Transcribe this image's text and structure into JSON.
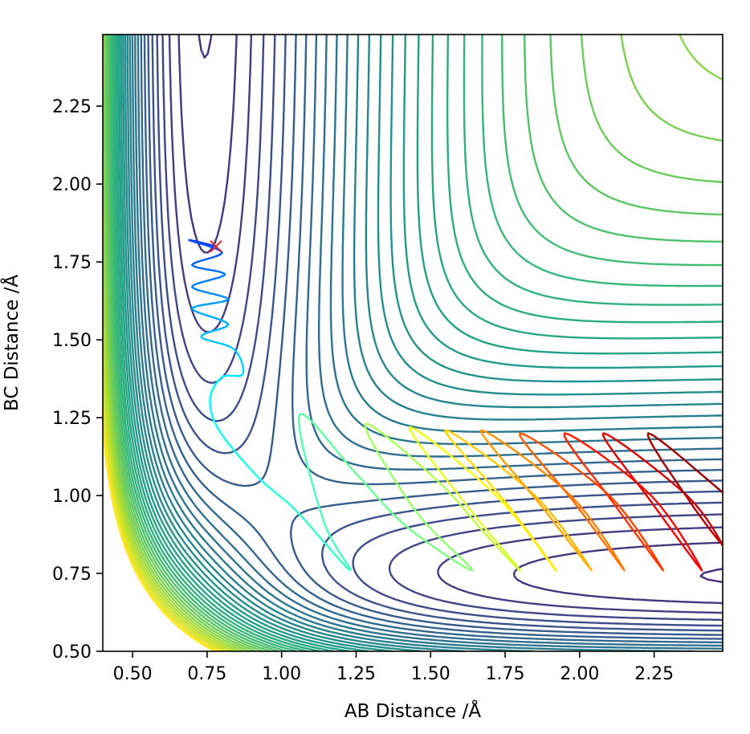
{
  "chart_data": {
    "type": "contour",
    "title": "",
    "xlabel": "AB Distance /Å",
    "ylabel": "BC Distance /Å",
    "xlim": [
      0.4,
      2.48
    ],
    "ylim": [
      0.5,
      2.48
    ],
    "xticks": [
      0.5,
      0.75,
      1.0,
      1.25,
      1.5,
      1.75,
      2.0,
      2.25
    ],
    "xtick_labels": [
      "0.50",
      "0.75",
      "1.00",
      "1.25",
      "1.50",
      "1.75",
      "2.00",
      "2.25"
    ],
    "yticks": [
      0.5,
      0.75,
      1.0,
      1.25,
      1.5,
      1.75,
      2.0,
      2.25
    ],
    "ytick_labels": [
      "0.50",
      "0.75",
      "1.00",
      "1.25",
      "1.50",
      "1.75",
      "2.00",
      "2.25"
    ],
    "grid": false,
    "legend": "none",
    "colormap": "viridis",
    "contour_levels": 40,
    "trajectory_colormap": "jet",
    "start_marker": {
      "x": 0.78,
      "y": 1.8,
      "symbol": "x",
      "color": "#e03030"
    },
    "trajectory": [
      [
        0.78,
        1.8
      ],
      [
        0.69,
        1.82
      ],
      [
        0.8,
        1.78
      ],
      [
        0.7,
        1.74
      ],
      [
        0.81,
        1.71
      ],
      [
        0.7,
        1.67
      ],
      [
        0.82,
        1.63
      ],
      [
        0.7,
        1.6
      ],
      [
        0.82,
        1.55
      ],
      [
        0.73,
        1.51
      ],
      [
        0.84,
        1.47
      ],
      [
        0.87,
        1.39
      ],
      [
        0.8,
        1.38
      ],
      [
        0.76,
        1.31
      ],
      [
        0.79,
        1.21
      ],
      [
        0.92,
        1.06
      ],
      [
        1.05,
        0.95
      ],
      [
        1.23,
        0.76
      ],
      [
        1.14,
        0.92
      ],
      [
        1.06,
        1.26
      ],
      [
        1.25,
        1.07
      ],
      [
        1.42,
        0.9
      ],
      [
        1.64,
        0.76
      ],
      [
        1.45,
        0.95
      ],
      [
        1.28,
        1.23
      ],
      [
        1.52,
        1.05
      ],
      [
        1.68,
        0.88
      ],
      [
        1.8,
        0.76
      ],
      [
        1.62,
        0.97
      ],
      [
        1.43,
        1.22
      ],
      [
        1.72,
        1.0
      ],
      [
        1.92,
        0.76
      ],
      [
        1.75,
        0.98
      ],
      [
        1.55,
        1.21
      ],
      [
        1.85,
        1.0
      ],
      [
        2.04,
        0.76
      ],
      [
        1.86,
        0.98
      ],
      [
        1.67,
        1.21
      ],
      [
        1.97,
        1.0
      ],
      [
        2.15,
        0.76
      ],
      [
        1.98,
        0.98
      ],
      [
        1.8,
        1.2
      ],
      [
        2.1,
        1.0
      ],
      [
        2.28,
        0.76
      ],
      [
        2.11,
        0.98
      ],
      [
        1.95,
        1.2
      ],
      [
        2.24,
        1.0
      ],
      [
        2.41,
        0.76
      ],
      [
        2.24,
        0.98
      ],
      [
        2.08,
        1.2
      ],
      [
        2.36,
        1.0
      ],
      [
        2.48,
        0.84
      ],
      [
        2.37,
        0.98
      ],
      [
        2.23,
        1.2
      ],
      [
        2.48,
        1.01
      ]
    ]
  }
}
